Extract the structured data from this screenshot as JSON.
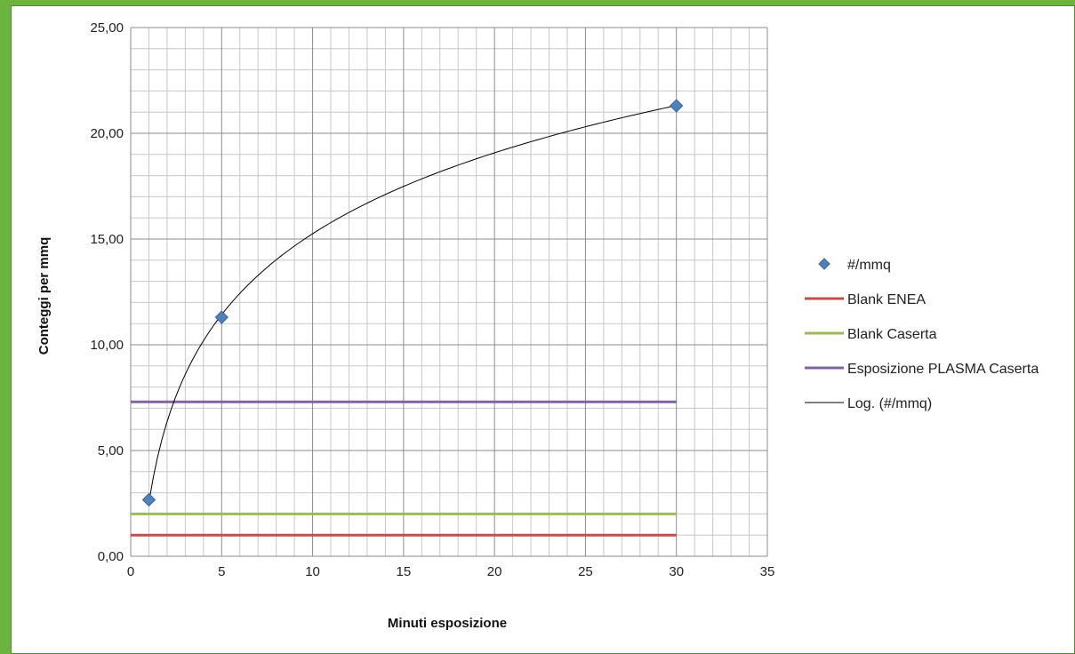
{
  "chart_data": {
    "type": "scatter",
    "xlabel": "Minuti esposizione",
    "ylabel": "Conteggi per mmq",
    "xlim": [
      0,
      35
    ],
    "ylim": [
      0,
      25
    ],
    "x_ticks": [
      "0",
      "5",
      "10",
      "15",
      "20",
      "25",
      "30",
      "35"
    ],
    "y_ticks": [
      "0,00",
      "5,00",
      "10,00",
      "15,00",
      "20,00",
      "25,00"
    ],
    "x_tick_values": [
      0,
      5,
      10,
      15,
      20,
      25,
      30,
      35
    ],
    "y_tick_values": [
      0,
      5,
      10,
      15,
      20,
      25
    ],
    "grid": true,
    "legend_position": "right",
    "series": [
      {
        "name": "#/mmq",
        "kind": "scatter",
        "color": "#4f81bd",
        "x": [
          1,
          5,
          30
        ],
        "y": [
          2.67,
          11.3,
          21.3
        ]
      },
      {
        "name": "Blank ENEA",
        "kind": "hline",
        "color": "#c0504d",
        "x": [
          0,
          30
        ],
        "y": [
          1.0,
          1.0
        ]
      },
      {
        "name": "Blank Caserta",
        "kind": "hline",
        "color": "#9bbb59",
        "x": [
          0,
          30
        ],
        "y": [
          2.0,
          2.0
        ]
      },
      {
        "name": "Esposizione PLASMA Caserta",
        "kind": "hline",
        "color": "#8064a2",
        "x": [
          0,
          30
        ],
        "y": [
          7.3,
          7.3
        ]
      },
      {
        "name": "Log. (#/mmq)",
        "kind": "trend-log",
        "color": "#000000",
        "x": [
          1,
          30
        ],
        "coef_a": 5.52,
        "coef_b": 2.54
      }
    ]
  }
}
